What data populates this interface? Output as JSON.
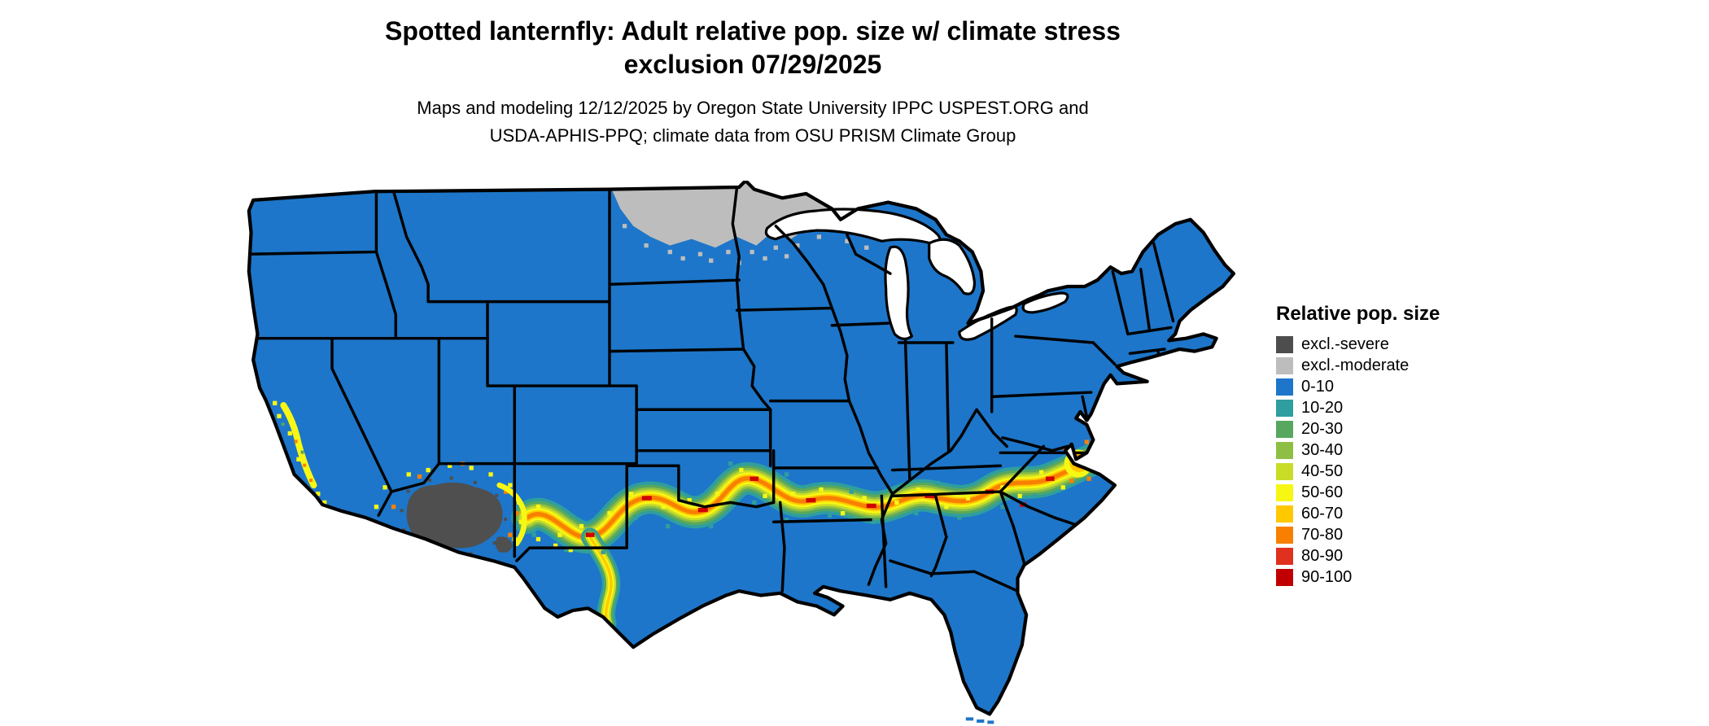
{
  "title": {
    "line1": "Spotted lanternfly: Adult relative pop. size w/ climate stress",
    "line2": "exclusion 07/29/2025"
  },
  "subtitle": {
    "line1": "Maps and modeling 12/12/2025 by Oregon State University IPPC USPEST.ORG and",
    "line2": "USDA-APHIS-PPQ; climate data from OSU PRISM Climate Group"
  },
  "legend": {
    "title": "Relative pop. size",
    "items": [
      {
        "label": "excl.-severe",
        "color": "#4d4d4d"
      },
      {
        "label": "excl.-moderate",
        "color": "#bdbdbd"
      },
      {
        "label": "0-10",
        "color": "#1d76c9"
      },
      {
        "label": "10-20",
        "color": "#2f9e9e"
      },
      {
        "label": "20-30",
        "color": "#57a75f"
      },
      {
        "label": "30-40",
        "color": "#8fbe44"
      },
      {
        "label": "40-50",
        "color": "#c8dc28"
      },
      {
        "label": "50-60",
        "color": "#f7f714"
      },
      {
        "label": "60-70",
        "color": "#ffc800"
      },
      {
        "label": "70-80",
        "color": "#f88000"
      },
      {
        "label": "80-90",
        "color": "#e0301e"
      },
      {
        "label": "90-100",
        "color": "#c00000"
      }
    ]
  },
  "map": {
    "region": "contiguous United States",
    "type": "choropleth raster with state borders",
    "base_class": "0-10",
    "base_color": "#1d76c9",
    "background_color": "#ffffff",
    "border_color": "#000000",
    "visible_patterns": {
      "excl_moderate_area": "eastern North Dakota and northern Minnesota",
      "excl_severe_area": "central/southern Arizona into southwest New Mexico",
      "high_pop_band": "southern band from New Mexico through Texas, Oklahoma, Arkansas, Mississippi, Alabama, Georgia, South Carolina to coastal North Carolina/Virginia",
      "secondary_spots": "central California valley speckles; hotspot near Virginia/Maryland coast"
    }
  }
}
